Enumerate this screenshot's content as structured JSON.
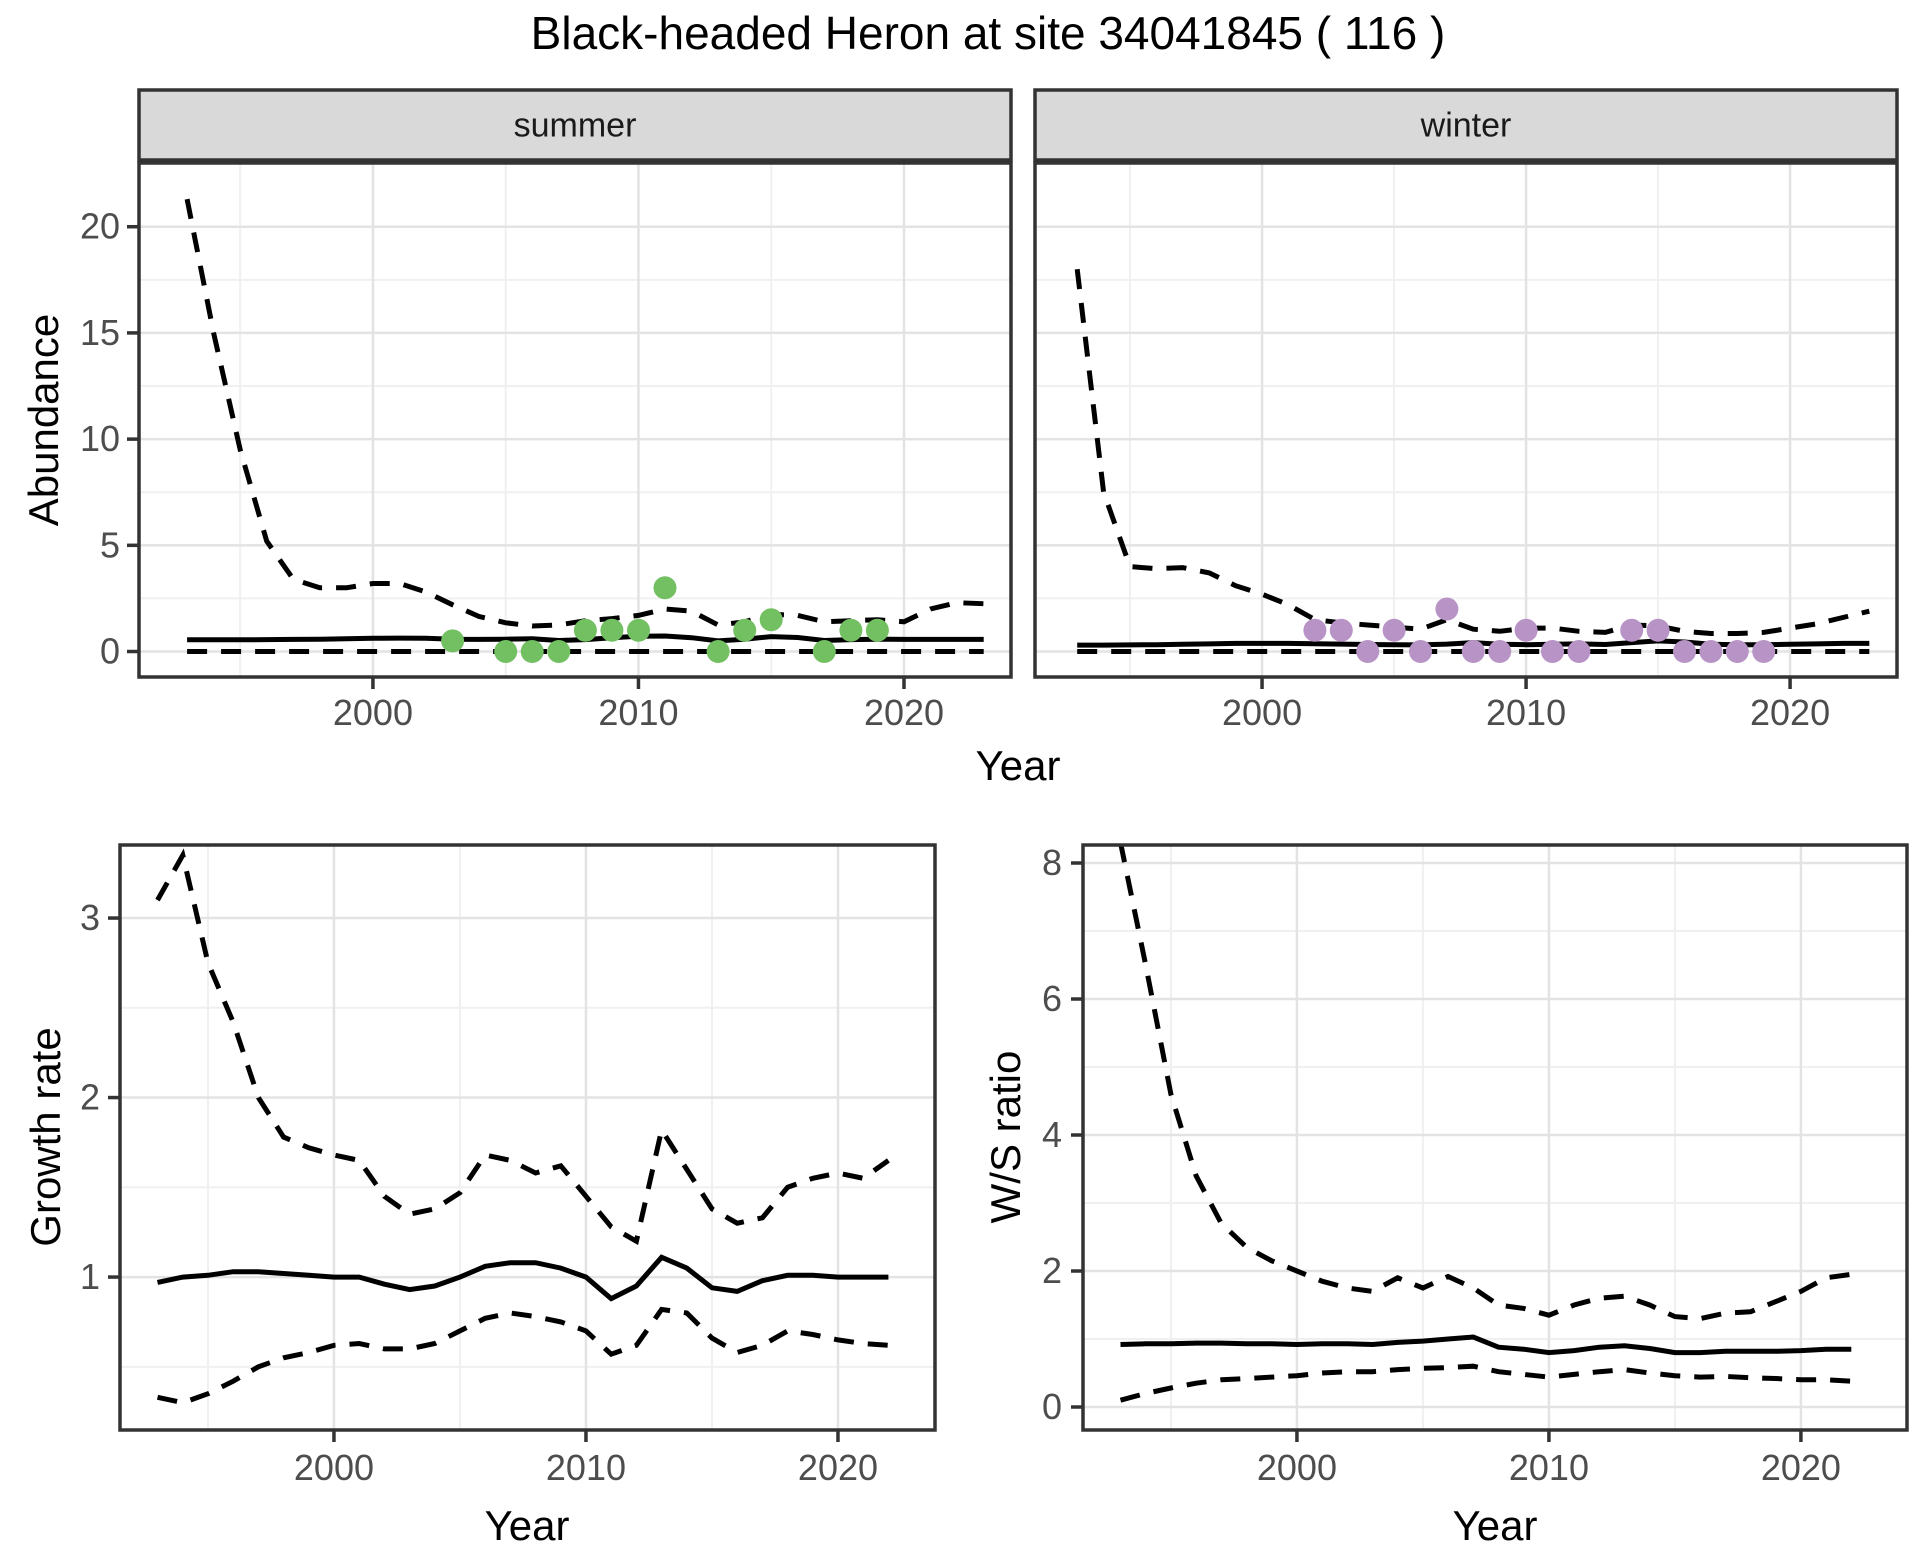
{
  "title": "Black-headed Heron at site 34041845 ( 116 )",
  "axis_titles": {
    "x": "Year",
    "abundance": "Abundance",
    "growth_rate": "Growth rate",
    "ws_ratio": "W/S ratio"
  },
  "facets": [
    {
      "label": "summer"
    },
    {
      "label": "winter"
    }
  ],
  "colors": {
    "summer_points": "#73c063",
    "winter_points": "#b793c6",
    "line": "#000000",
    "strip_bg": "#d9d9d9",
    "panel_border": "#333333",
    "grid_major": "#e3e3e3",
    "grid_minor": "#f0f0f0",
    "tick_label": "#4d4d4d",
    "panel_bg": "#ffffff"
  },
  "chart_data": [
    {
      "type": "line",
      "name": "abundance-summer",
      "facet": "summer",
      "xlabel": "Year",
      "ylabel": "Abundance",
      "xlim": [
        1991.19,
        2024.03
      ],
      "ylim": [
        -1.2,
        23.0
      ],
      "xticks": [
        2000,
        2010,
        2020
      ],
      "xticks_minor": [
        1995,
        2005,
        2015
      ],
      "yticks": [
        0,
        5,
        10,
        15,
        20
      ],
      "yticks_minor": [
        2.5,
        7.5,
        12.5,
        17.5
      ],
      "show_ytick_labels": true,
      "grid": true,
      "legend": "none",
      "years": [
        1993,
        1994,
        1995,
        1996,
        1997,
        1998,
        1999,
        2000,
        2001,
        2002,
        2003,
        2004,
        2005,
        2006,
        2007,
        2008,
        2009,
        2010,
        2011,
        2012,
        2013,
        2014,
        2015,
        2016,
        2017,
        2018,
        2019,
        2020,
        2021,
        2022,
        2023
      ],
      "series": [
        {
          "name": "median",
          "style": "solid",
          "values": [
            0.55,
            0.55,
            0.55,
            0.56,
            0.57,
            0.58,
            0.6,
            0.62,
            0.63,
            0.62,
            0.58,
            0.57,
            0.58,
            0.6,
            0.52,
            0.56,
            0.65,
            0.72,
            0.73,
            0.65,
            0.5,
            0.58,
            0.7,
            0.66,
            0.52,
            0.56,
            0.58,
            0.57,
            0.57,
            0.57,
            0.57
          ]
        },
        {
          "name": "lower-ci",
          "style": "dashed",
          "values": [
            0,
            0,
            0,
            0,
            0,
            0,
            0,
            0,
            0,
            0,
            0,
            0,
            0,
            0,
            0,
            0,
            0,
            0,
            0,
            0,
            0,
            0,
            0,
            0,
            0,
            0,
            0,
            0,
            0,
            0,
            0
          ]
        },
        {
          "name": "upper-ci",
          "style": "dashed",
          "values": [
            21.3,
            15.0,
            9.5,
            5.2,
            3.4,
            3.0,
            3.0,
            3.2,
            3.2,
            2.8,
            2.2,
            1.65,
            1.35,
            1.2,
            1.25,
            1.45,
            1.55,
            1.7,
            2.0,
            1.9,
            1.25,
            1.4,
            1.75,
            1.7,
            1.4,
            1.45,
            1.5,
            1.4,
            2.0,
            2.3,
            2.25
          ]
        }
      ],
      "points": {
        "name": "summer-observations",
        "color": "#73c063",
        "data": [
          [
            2003,
            0.5
          ],
          [
            2005,
            0
          ],
          [
            2006,
            0
          ],
          [
            2007,
            0
          ],
          [
            2008,
            1
          ],
          [
            2009,
            1
          ],
          [
            2010,
            1
          ],
          [
            2011,
            3
          ],
          [
            2013,
            0
          ],
          [
            2014,
            1
          ],
          [
            2015,
            1.5
          ],
          [
            2017,
            0
          ],
          [
            2018,
            1
          ],
          [
            2019,
            1
          ]
        ]
      }
    },
    {
      "type": "line",
      "name": "abundance-winter",
      "facet": "winter",
      "xlabel": "Year",
      "ylabel": "Abundance",
      "xlim": [
        1991.4,
        2024.05
      ],
      "ylim": [
        -1.2,
        23.0
      ],
      "xticks": [
        2000,
        2010,
        2020
      ],
      "xticks_minor": [
        1995,
        2005,
        2015
      ],
      "yticks": [
        0,
        5,
        10,
        15,
        20
      ],
      "yticks_minor": [
        2.5,
        7.5,
        12.5,
        17.5
      ],
      "show_ytick_labels": false,
      "grid": true,
      "legend": "none",
      "years": [
        1993,
        1994,
        1995,
        1996,
        1997,
        1998,
        1999,
        2000,
        2001,
        2002,
        2003,
        2004,
        2005,
        2006,
        2007,
        2008,
        2009,
        2010,
        2011,
        2012,
        2013,
        2014,
        2015,
        2016,
        2017,
        2018,
        2019,
        2020,
        2021,
        2022,
        2023
      ],
      "series": [
        {
          "name": "median",
          "style": "solid",
          "values": [
            0.3,
            0.3,
            0.31,
            0.32,
            0.34,
            0.36,
            0.38,
            0.38,
            0.38,
            0.37,
            0.35,
            0.33,
            0.32,
            0.31,
            0.35,
            0.42,
            0.34,
            0.32,
            0.34,
            0.36,
            0.33,
            0.42,
            0.5,
            0.45,
            0.34,
            0.32,
            0.32,
            0.34,
            0.36,
            0.38,
            0.38
          ]
        },
        {
          "name": "lower-ci",
          "style": "dashed",
          "values": [
            0,
            0,
            0,
            0,
            0,
            0,
            0,
            0,
            0,
            0,
            0,
            0,
            0,
            0,
            0,
            0,
            0,
            0,
            0,
            0,
            0,
            0,
            0,
            0,
            0,
            0,
            0,
            0,
            0,
            0,
            0
          ]
        },
        {
          "name": "upper-ci",
          "style": "dashed",
          "values": [
            18.0,
            7.5,
            4.0,
            3.9,
            3.95,
            3.7,
            3.1,
            2.7,
            2.2,
            1.5,
            1.35,
            1.25,
            1.15,
            1.05,
            1.5,
            1.05,
            0.95,
            1.1,
            1.1,
            0.95,
            0.9,
            1.25,
            1.2,
            0.95,
            0.85,
            0.85,
            0.9,
            1.1,
            1.3,
            1.6,
            1.9
          ]
        }
      ],
      "points": {
        "name": "winter-observations",
        "color": "#b793c6",
        "data": [
          [
            2002,
            1
          ],
          [
            2003,
            1
          ],
          [
            2004,
            0
          ],
          [
            2005,
            1
          ],
          [
            2006,
            0
          ],
          [
            2007,
            2
          ],
          [
            2008,
            0
          ],
          [
            2009,
            0
          ],
          [
            2010,
            1
          ],
          [
            2011,
            0
          ],
          [
            2012,
            0
          ],
          [
            2014,
            1
          ],
          [
            2015,
            1
          ],
          [
            2016,
            0
          ],
          [
            2017,
            0
          ],
          [
            2018,
            0
          ],
          [
            2019,
            0
          ]
        ]
      }
    },
    {
      "type": "line",
      "name": "growth-rate",
      "facet": null,
      "xlabel": "Year",
      "ylabel": "Growth rate",
      "xlim": [
        1991.51,
        2023.85
      ],
      "ylim": [
        0.148,
        3.407
      ],
      "xticks": [
        2000,
        2010,
        2020
      ],
      "xticks_minor": [
        1995,
        2005,
        2015
      ],
      "yticks": [
        1,
        2,
        3
      ],
      "yticks_minor": [
        0.5,
        1.5,
        2.5
      ],
      "show_ytick_labels": true,
      "grid": true,
      "legend": "none",
      "years": [
        1993,
        1994,
        1995,
        1996,
        1997,
        1998,
        1999,
        2000,
        2001,
        2002,
        2003,
        2004,
        2005,
        2006,
        2007,
        2008,
        2009,
        2010,
        2011,
        2012,
        2013,
        2014,
        2015,
        2016,
        2017,
        2018,
        2019,
        2020,
        2021,
        2022
      ],
      "series": [
        {
          "name": "median",
          "style": "solid",
          "values": [
            0.97,
            1.0,
            1.01,
            1.03,
            1.03,
            1.02,
            1.01,
            1.0,
            1.0,
            0.96,
            0.93,
            0.95,
            1.0,
            1.06,
            1.08,
            1.08,
            1.05,
            1.0,
            0.88,
            0.95,
            1.11,
            1.05,
            0.94,
            0.92,
            0.98,
            1.01,
            1.01,
            1.0,
            1.0,
            1.0
          ]
        },
        {
          "name": "lower-ci",
          "style": "dashed",
          "values": [
            0.33,
            0.3,
            0.35,
            0.42,
            0.5,
            0.55,
            0.58,
            0.62,
            0.63,
            0.6,
            0.6,
            0.63,
            0.7,
            0.77,
            0.8,
            0.78,
            0.75,
            0.7,
            0.57,
            0.62,
            0.82,
            0.8,
            0.66,
            0.58,
            0.62,
            0.7,
            0.68,
            0.65,
            0.63,
            0.62
          ]
        },
        {
          "name": "upper-ci",
          "style": "dashed",
          "values": [
            3.1,
            3.35,
            2.75,
            2.42,
            2.0,
            1.78,
            1.72,
            1.68,
            1.65,
            1.45,
            1.35,
            1.38,
            1.47,
            1.68,
            1.65,
            1.58,
            1.62,
            1.45,
            1.28,
            1.2,
            1.82,
            1.6,
            1.38,
            1.3,
            1.33,
            1.5,
            1.55,
            1.58,
            1.55,
            1.65
          ]
        }
      ],
      "points": null
    },
    {
      "type": "line",
      "name": "ws-ratio",
      "facet": null,
      "xlabel": "Year",
      "ylabel": "W/S ratio",
      "xlim": [
        1991.51,
        2024.21
      ],
      "ylim": [
        -0.338,
        8.265
      ],
      "xticks": [
        2000,
        2010,
        2020
      ],
      "xticks_minor": [
        1995,
        2005,
        2015
      ],
      "yticks": [
        0,
        2,
        4,
        6,
        8
      ],
      "yticks_minor": [
        1,
        3,
        5,
        7
      ],
      "show_ytick_labels": true,
      "grid": true,
      "legend": "none",
      "years": [
        1993,
        1994,
        1995,
        1996,
        1997,
        1998,
        1999,
        2000,
        2001,
        2002,
        2003,
        2004,
        2005,
        2006,
        2007,
        2008,
        2009,
        2010,
        2011,
        2012,
        2013,
        2014,
        2015,
        2016,
        2017,
        2018,
        2019,
        2020,
        2021,
        2022
      ],
      "series": [
        {
          "name": "median",
          "style": "solid",
          "values": [
            0.92,
            0.93,
            0.93,
            0.94,
            0.94,
            0.93,
            0.93,
            0.92,
            0.93,
            0.93,
            0.92,
            0.95,
            0.97,
            1.0,
            1.03,
            0.88,
            0.85,
            0.8,
            0.83,
            0.88,
            0.9,
            0.86,
            0.8,
            0.8,
            0.82,
            0.82,
            0.82,
            0.83,
            0.85,
            0.85
          ]
        },
        {
          "name": "lower-ci",
          "style": "dashed",
          "values": [
            0.1,
            0.2,
            0.28,
            0.35,
            0.4,
            0.42,
            0.44,
            0.46,
            0.5,
            0.52,
            0.52,
            0.55,
            0.57,
            0.58,
            0.6,
            0.52,
            0.48,
            0.44,
            0.48,
            0.52,
            0.55,
            0.5,
            0.46,
            0.44,
            0.45,
            0.43,
            0.42,
            0.4,
            0.4,
            0.38
          ]
        },
        {
          "name": "upper-ci",
          "style": "dashed",
          "values": [
            8.3,
            6.5,
            4.6,
            3.4,
            2.7,
            2.35,
            2.15,
            2.0,
            1.85,
            1.75,
            1.7,
            1.9,
            1.75,
            1.92,
            1.75,
            1.5,
            1.45,
            1.35,
            1.5,
            1.6,
            1.63,
            1.5,
            1.33,
            1.3,
            1.38,
            1.4,
            1.55,
            1.7,
            1.9,
            1.95
          ]
        }
      ],
      "points": null
    }
  ]
}
